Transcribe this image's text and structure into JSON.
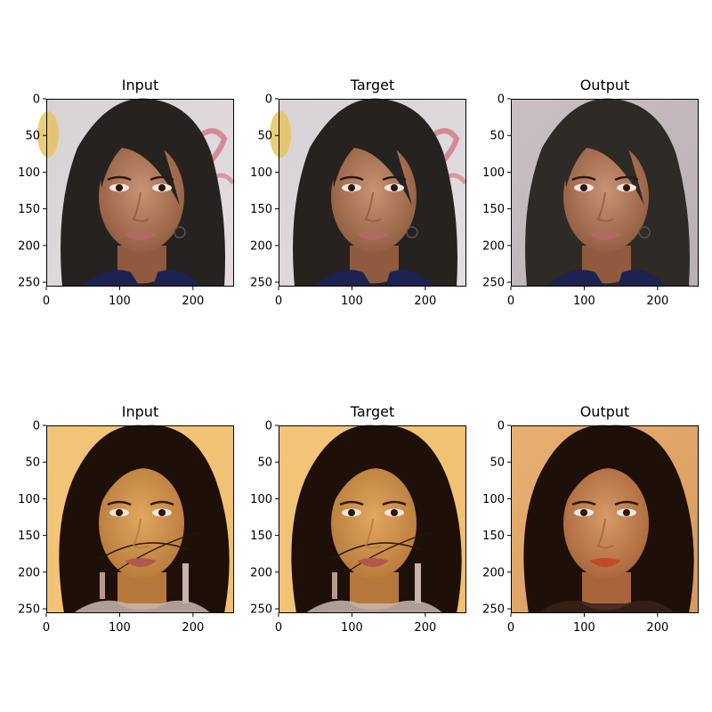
{
  "figure": {
    "rows": [
      {
        "panels": [
          {
            "title": "Input",
            "image": "portrait-woman-straight-hair",
            "tone": "light-background"
          },
          {
            "title": "Target",
            "image": "portrait-woman-straight-hair",
            "tone": "light-background"
          },
          {
            "title": "Output",
            "image": "generated-portrait-woman",
            "tone": "blurred-background"
          }
        ]
      },
      {
        "panels": [
          {
            "title": "Input",
            "image": "portrait-woman-curly-hair",
            "tone": "warm-orange"
          },
          {
            "title": "Target",
            "image": "portrait-woman-curly-hair",
            "tone": "warm-orange"
          },
          {
            "title": "Output",
            "image": "generated-portrait-woman",
            "tone": "warm-orange"
          }
        ]
      }
    ],
    "axis": {
      "x_ticks": [
        "0",
        "100",
        "200"
      ],
      "y_ticks": [
        "0",
        "50",
        "100",
        "150",
        "200",
        "250"
      ],
      "range": [
        0,
        256
      ]
    }
  }
}
